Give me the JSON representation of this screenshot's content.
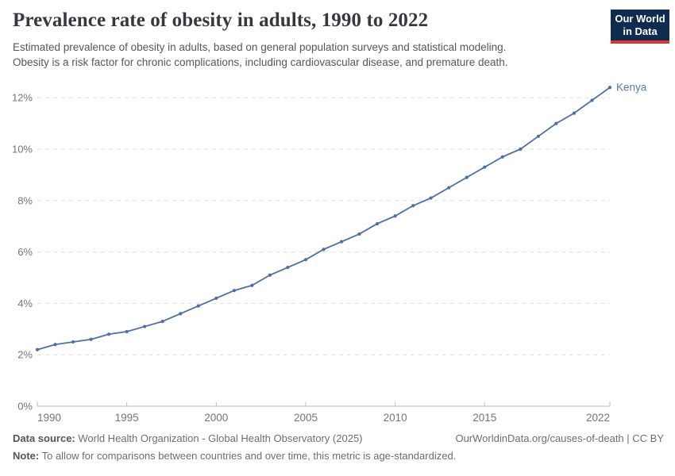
{
  "header": {
    "title": "Prevalence rate of obesity in adults, 1990 to 2022",
    "subtitle_line1": "Estimated prevalence of obesity in adults, based on general population surveys and statistical modeling.",
    "subtitle_line2": "Obesity is a risk factor for chronic complications, including cardiovascular disease, and premature death.",
    "logo": {
      "line1": "Our World",
      "line2": "in Data",
      "bg_color": "#0f2c50",
      "accent_color": "#d8392f"
    }
  },
  "chart_data": {
    "type": "line",
    "title": "Prevalence rate of obesity in adults, 1990 to 2022",
    "entity": "Kenya",
    "unit": "%",
    "x": [
      1990,
      1991,
      1992,
      1993,
      1994,
      1995,
      1996,
      1997,
      1998,
      1999,
      2000,
      2001,
      2002,
      2003,
      2004,
      2005,
      2006,
      2007,
      2008,
      2009,
      2010,
      2011,
      2012,
      2013,
      2014,
      2015,
      2016,
      2017,
      2018,
      2019,
      2020,
      2021,
      2022
    ],
    "values": [
      2.2,
      2.4,
      2.5,
      2.6,
      2.8,
      2.9,
      3.1,
      3.3,
      3.6,
      3.9,
      4.2,
      4.5,
      4.7,
      5.1,
      5.4,
      5.7,
      6.1,
      6.4,
      6.7,
      7.1,
      7.4,
      7.8,
      8.1,
      8.5,
      8.9,
      9.3,
      9.7,
      10.0,
      10.5,
      11.0,
      11.4,
      11.9,
      12.4
    ],
    "ylim": [
      0,
      12
    ],
    "yticks": [
      0,
      2,
      4,
      6,
      8,
      10,
      12
    ],
    "ytick_suffix": "%",
    "xticks": [
      1990,
      1995,
      2000,
      2005,
      2010,
      2015,
      2022
    ],
    "grid": "horizontal-dashed",
    "legend_position": "end-of-line",
    "line_color": "#4d6ea8",
    "marker": "dot",
    "entity_label_color": "#5879ae",
    "axis_color": "#bdbdbd",
    "grid_color": "#dedede",
    "tick_label_color": "#757575"
  },
  "footer": {
    "source_label": "Data source:",
    "source_text": " World Health Organization - Global Health Observatory (2025)",
    "citation": "OurWorldinData.org/causes-of-death | CC BY",
    "note_label": "Note:",
    "note_text": " To allow for comparisons between countries and over time, this metric is age-standardized."
  }
}
